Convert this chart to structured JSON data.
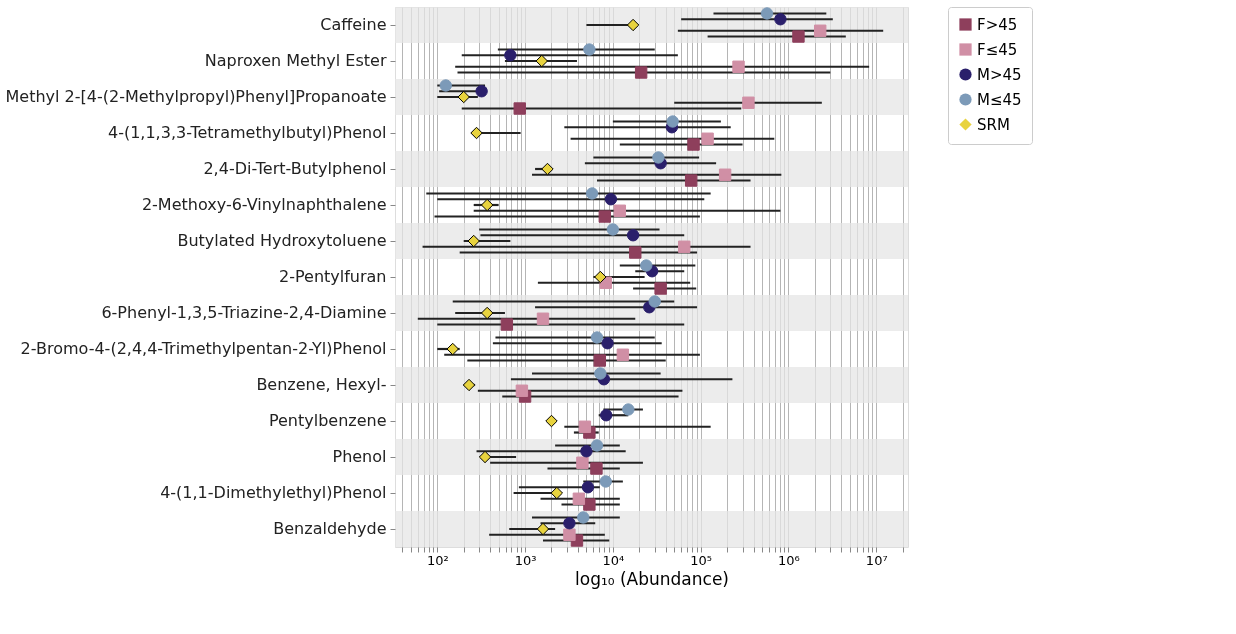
{
  "chart_data": {
    "type": "scatter",
    "orientation": "horizontal",
    "log": "x",
    "xlabel": "log₁₀ (Abundance)",
    "legend": "right",
    "grid": "x",
    "categories": [
      "Caffeine",
      "Naproxen Methyl Ester",
      "Methyl 2-[4-(2-Methylpropyl)Phenyl]Propanoate",
      "4-(1,1,3,3-Tetramethylbutyl)Phenol",
      "2,4-Di-Tert-Butylphenol",
      "2-Methoxy-6-Vinylnaphthalene",
      "Butylated Hydroxytoluene",
      "2-Pentylfuran",
      "6-Phenyl-1,3,5-Triazine-2,4-Diamine",
      "2-Bromo-4-(2,4,4-Trimethylpentan-2-Yl)Phenol",
      "Benzene, Hexyl-",
      "Pentylbenzene",
      "Phenol",
      "4-(1,1-Dimethylethyl)Phenol",
      "Benzaldehyde"
    ],
    "xlim": [
      33,
      23000000
    ],
    "xticks": [
      {
        "value": 40,
        "label": null
      },
      {
        "value": 50,
        "label": null
      },
      {
        "value": 60,
        "label": null
      },
      {
        "value": 70,
        "label": null
      },
      {
        "value": 80,
        "label": null
      },
      {
        "value": 90,
        "label": null
      },
      {
        "value": 100,
        "label": "10²"
      },
      {
        "value": 200,
        "label": null
      },
      {
        "value": 300,
        "label": null
      },
      {
        "value": 400,
        "label": null
      },
      {
        "value": 500,
        "label": null
      },
      {
        "value": 600,
        "label": null
      },
      {
        "value": 700,
        "label": null
      },
      {
        "value": 800,
        "label": null
      },
      {
        "value": 900,
        "label": null
      },
      {
        "value": 1000,
        "label": "10³"
      },
      {
        "value": 2000,
        "label": null
      },
      {
        "value": 3000,
        "label": null
      },
      {
        "value": 4000,
        "label": null
      },
      {
        "value": 5000,
        "label": null
      },
      {
        "value": 6000,
        "label": null
      },
      {
        "value": 7000,
        "label": null
      },
      {
        "value": 8000,
        "label": null
      },
      {
        "value": 9000,
        "label": null
      },
      {
        "value": 10000,
        "label": "10⁴"
      },
      {
        "value": 20000,
        "label": null
      },
      {
        "value": 30000,
        "label": null
      },
      {
        "value": 40000,
        "label": null
      },
      {
        "value": 50000,
        "label": null
      },
      {
        "value": 60000,
        "label": null
      },
      {
        "value": 70000,
        "label": null
      },
      {
        "value": 80000,
        "label": null
      },
      {
        "value": 90000,
        "label": null
      },
      {
        "value": 100000,
        "label": "10⁵"
      },
      {
        "value": 200000,
        "label": null
      },
      {
        "value": 300000,
        "label": null
      },
      {
        "value": 400000,
        "label": null
      },
      {
        "value": 500000,
        "label": null
      },
      {
        "value": 600000,
        "label": null
      },
      {
        "value": 700000,
        "label": null
      },
      {
        "value": 800000,
        "label": null
      },
      {
        "value": 900000,
        "label": null
      },
      {
        "value": 1000000,
        "label": "10⁶"
      },
      {
        "value": 2000000,
        "label": null
      },
      {
        "value": 3000000,
        "label": null
      },
      {
        "value": 4000000,
        "label": null
      },
      {
        "value": 5000000,
        "label": null
      },
      {
        "value": 6000000,
        "label": null
      },
      {
        "value": 7000000,
        "label": null
      },
      {
        "value": 8000000,
        "label": null
      },
      {
        "value": 9000000,
        "label": null
      },
      {
        "value": 10000000,
        "label": "10⁷"
      },
      {
        "value": 20000000,
        "label": null
      }
    ],
    "bands": [
      {
        "axis": "y",
        "from": "Caffeine",
        "to": "Caffeine",
        "color": "#e5e5e5"
      },
      {
        "axis": "y",
        "from": "Methyl 2-[4-(2-Methylpropyl)Phenyl]Propanoate",
        "to": "Methyl 2-[4-(2-Methylpropyl)Phenyl]Propanoate",
        "color": "#e5e5e5"
      },
      {
        "axis": "y",
        "from": "2,4-Di-Tert-Butylphenol",
        "to": "2,4-Di-Tert-Butylphenol",
        "color": "#e5e5e5"
      },
      {
        "axis": "y",
        "from": "Butylated Hydroxytoluene",
        "to": "Butylated Hydroxytoluene",
        "color": "#e5e5e5"
      },
      {
        "axis": "y",
        "from": "6-Phenyl-1,3,5-Triazine-2,4-Diamine",
        "to": "6-Phenyl-1,3,5-Triazine-2,4-Diamine",
        "color": "#e5e5e5"
      },
      {
        "axis": "y",
        "from": "Benzene, Hexyl-",
        "to": "Benzene, Hexyl-",
        "color": "#e5e5e5"
      },
      {
        "axis": "y",
        "from": "Phenol",
        "to": "Phenol",
        "color": "#e5e5e5"
      },
      {
        "axis": "y",
        "from": "Benzaldehyde",
        "to": "Benzaldehyde",
        "color": "#e5e5e5"
      }
    ],
    "series": [
      {
        "name": "F>45",
        "color": "#8e3f5c",
        "marker": "square",
        "values": [
          1300000,
          21000,
          870,
          83000,
          78000,
          8100,
          18000,
          35000,
          620,
          7100,
          1000,
          5400,
          6500,
          5400,
          3900
        ],
        "errors": [
          [
            120000,
            4500000
          ],
          [
            170,
            3000000
          ],
          [
            190,
            290000
          ],
          [
            12000,
            300000
          ],
          [
            6600,
            370000
          ],
          [
            93,
            98000
          ],
          [
            180,
            91000
          ],
          [
            17000,
            89000
          ],
          [
            100,
            65000
          ],
          [
            220,
            40000
          ],
          [
            550,
            56000
          ],
          [
            3600,
            6900
          ],
          [
            1800,
            12000
          ],
          [
            2600,
            12000
          ],
          [
            1600,
            9100
          ]
        ]
      },
      {
        "name": "F≤45",
        "color": "#d08fa5",
        "marker": "square",
        "values": [
          2300000,
          270000,
          350000,
          120000,
          190000,
          12000,
          65000,
          8300,
          1600,
          13000,
          920,
          4800,
          4500,
          4100,
          3200
        ],
        "errors": [
          [
            55000,
            12000000
          ],
          [
            160,
            8300000
          ],
          [
            50000,
            2400000
          ],
          [
            3300,
            690000
          ],
          [
            1200,
            830000
          ],
          [
            260,
            810000
          ],
          [
            68,
            370000
          ],
          [
            1400,
            76000
          ],
          [
            60,
            18000
          ],
          [
            120,
            98000
          ],
          [
            290,
            62000
          ],
          [
            2800,
            130000
          ],
          [
            400,
            22000
          ],
          [
            1500,
            12000
          ],
          [
            390,
            8100
          ]
        ]
      },
      {
        "name": "M>45",
        "color": "#2a1f6b",
        "marker": "circle",
        "values": [
          810000,
          680,
          320,
          47000,
          35000,
          9500,
          17000,
          28000,
          26000,
          8700,
          7900,
          8400,
          5000,
          5200,
          3200
        ],
        "errors": [
          [
            60000,
            3200000
          ],
          [
            190,
            55000
          ],
          [
            105,
            320
          ],
          [
            2800,
            220000
          ],
          [
            4800,
            150000
          ],
          [
            100,
            110000
          ],
          [
            310,
            65000
          ],
          [
            18000,
            65000
          ],
          [
            1300,
            91000
          ],
          [
            430,
            36000
          ],
          [
            690,
            230000
          ],
          [
            6900,
            15000
          ],
          [
            280,
            14000
          ],
          [
            850,
            7100
          ],
          [
            1500,
            6300
          ]
        ]
      },
      {
        "name": "M≤45",
        "color": "#7c9ab8",
        "marker": "circle",
        "values": [
          570000,
          5400,
          125,
          48000,
          33000,
          5800,
          10000,
          24000,
          30000,
          6600,
          7200,
          15000,
          6600,
          8300,
          4600
        ],
        "errors": [
          [
            140000,
            2700000
          ],
          [
            490,
            30000
          ],
          [
            100,
            350
          ],
          [
            10000,
            170000
          ],
          [
            6000,
            96000
          ],
          [
            75,
            130000
          ],
          [
            300,
            34000
          ],
          [
            12000,
            87000
          ],
          [
            150,
            50000
          ],
          [
            460,
            30000
          ],
          [
            1200,
            35000
          ],
          [
            7800,
            22000
          ],
          [
            2200,
            12000
          ],
          [
            4600,
            13000
          ],
          [
            1200,
            12000
          ]
        ]
      },
      {
        "name": "SRM",
        "color": "#e8d33e",
        "marker": "diamond",
        "values": [
          17000,
          1550,
          200,
          280,
          1800,
          370,
          260,
          7200,
          370,
          150,
          230,
          2000,
          350,
          2300,
          1600
        ],
        "errors": [
          [
            5000,
            17000
          ],
          [
            590,
            3900
          ],
          [
            100,
            290
          ],
          [
            280,
            890
          ],
          [
            1300,
            1800
          ],
          [
            260,
            500
          ],
          [
            200,
            680
          ],
          [
            6000,
            23000
          ],
          [
            160,
            590
          ],
          [
            100,
            180
          ],
          [
            200,
            270
          ],
          [
            1800,
            2200
          ],
          [
            330,
            790
          ],
          [
            740,
            2300
          ],
          [
            660,
            2200
          ]
        ]
      }
    ]
  }
}
